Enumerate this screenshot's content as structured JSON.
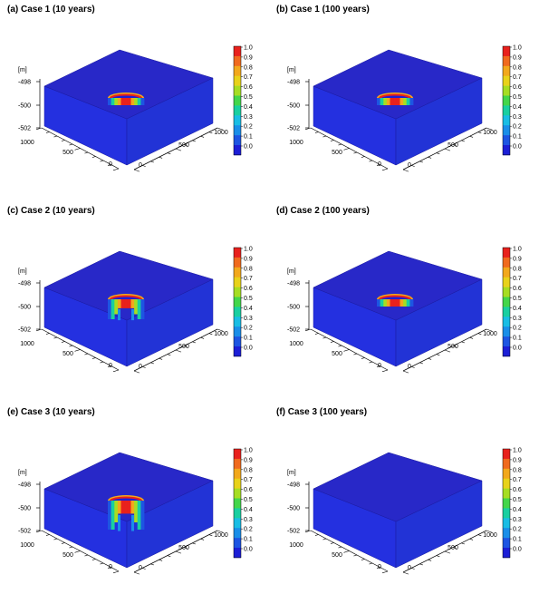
{
  "z_unit": "[m]",
  "z_ticks": [
    "-498",
    "-500",
    "-502"
  ],
  "x_ticks": [
    "1000",
    "500",
    "0"
  ],
  "y_ticks": [
    "0",
    "500",
    "1000"
  ],
  "colorbar": {
    "labels": [
      "1.0",
      "0.9",
      "0.8",
      "0.7",
      "0.6",
      "0.5",
      "0.4",
      "0.3",
      "0.2",
      "0.1",
      "0.0"
    ],
    "colors": [
      "#e8211d",
      "#f06a1e",
      "#f2a81c",
      "#e8d21a",
      "#a6dd22",
      "#43d64a",
      "#19cfa0",
      "#19bde4",
      "#1a8ee8",
      "#1d55e2",
      "#1c1ed6"
    ]
  },
  "colors": {
    "block_top": "#2828c8",
    "block_left": "#2430e0",
    "block_right": "#2233d6"
  },
  "panels": [
    {
      "title": "(a) Case 1 (10 years)",
      "plume": "case1"
    },
    {
      "title": "(b) Case 1 (100 years)",
      "plume": "case1"
    },
    {
      "title": "(c) Case 2 (10 years)",
      "plume": "case2"
    },
    {
      "title": "(d) Case 2 (100 years)",
      "plume": "case1"
    },
    {
      "title": "(e) Case 3 (10 years)",
      "plume": "case3"
    },
    {
      "title": "(f) Case 3 (100 years)",
      "plume": "none"
    }
  ]
}
